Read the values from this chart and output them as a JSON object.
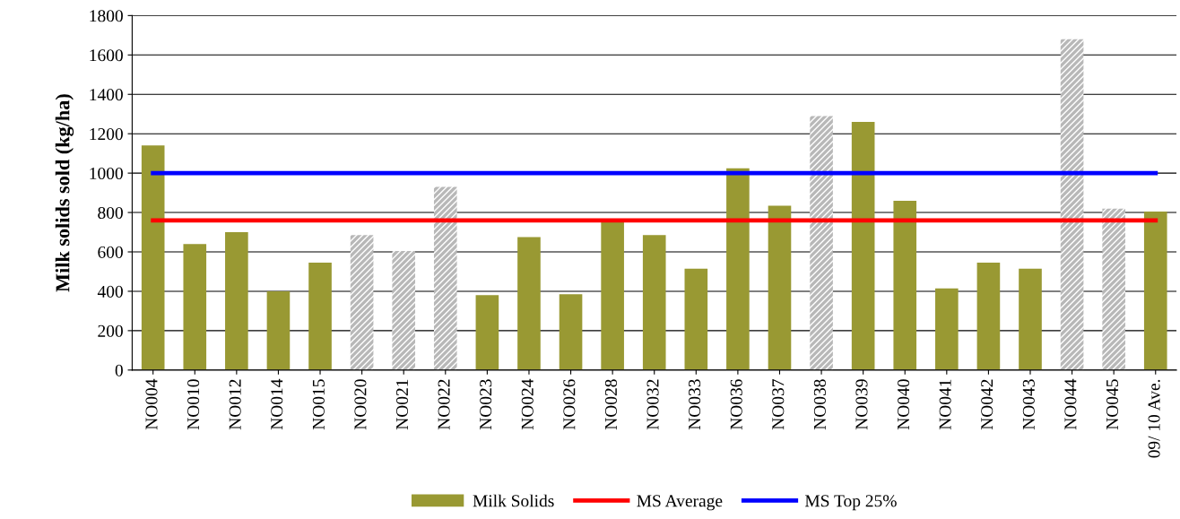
{
  "chart_data": {
    "type": "bar",
    "ylabel": "Milk solids sold (kg/ha)",
    "categories": [
      "NO004",
      "NO010",
      "NO012",
      "NO014",
      "NO015",
      "NO020",
      "NO021",
      "NO022",
      "NO023",
      "NO024",
      "NO026",
      "NO028",
      "NO032",
      "NO033",
      "NO036",
      "NO037",
      "NO038",
      "NO039",
      "NO040",
      "NO041",
      "NO042",
      "NO043",
      "NO044",
      "NO045",
      "09/ 10 Ave."
    ],
    "series": [
      {
        "name": "Milk Solids",
        "color": "#999933",
        "colors": [
          "#999933",
          "#999933",
          "#999933",
          "#999933",
          "#999933",
          "#b8b8b8",
          "#b8b8b8",
          "#b8b8b8",
          "#999933",
          "#999933",
          "#999933",
          "#999933",
          "#999933",
          "#999933",
          "#999933",
          "#999933",
          "#b8b8b8",
          "#999933",
          "#999933",
          "#999933",
          "#999933",
          "#999933",
          "#b8b8b8",
          "#b8b8b8",
          "#999933"
        ],
        "values": [
          1140,
          640,
          700,
          400,
          545,
          685,
          605,
          930,
          380,
          675,
          385,
          765,
          685,
          515,
          1025,
          835,
          1290,
          1260,
          860,
          415,
          545,
          515,
          1680,
          820,
          805
        ]
      },
      {
        "name": "MS Average",
        "type": "line",
        "color": "#ff0000",
        "values": [
          760,
          760,
          760,
          760,
          760,
          760,
          760,
          760,
          760,
          760,
          760,
          760,
          760,
          760,
          760,
          760,
          760,
          760,
          760,
          760,
          760,
          760,
          760,
          760,
          760
        ]
      },
      {
        "name": "MS Top 25%",
        "type": "line",
        "color": "#0000ff",
        "values": [
          1000,
          1000,
          1000,
          1000,
          1000,
          1000,
          1000,
          1000,
          1000,
          1000,
          1000,
          1000,
          1000,
          1000,
          1000,
          1000,
          1000,
          1000,
          1000,
          1000,
          1000,
          1000,
          1000,
          1000,
          1000
        ]
      }
    ],
    "ylim": [
      0,
      1800
    ],
    "yticks": [
      0,
      200,
      400,
      600,
      800,
      1000,
      1200,
      1400,
      1600,
      1800
    ],
    "grid": "y",
    "legend": "bottom"
  }
}
